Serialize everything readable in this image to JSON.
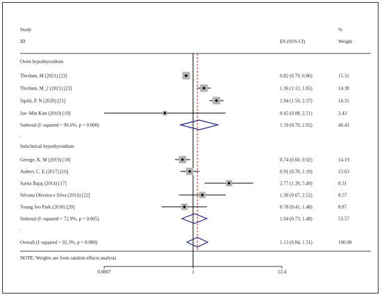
{
  "chart_data": {
    "type": "forest",
    "x_scale": "log",
    "xlim": [
      0.0807,
      12.4
    ],
    "xticks": [
      "0.0807",
      "1",
      "12.4"
    ],
    "null_line": 1,
    "overall_effect_line": 1.13,
    "header": {
      "study_l1": "Study",
      "study_l2": "ID",
      "es": "ES (95% CI)",
      "weight_l1": "%",
      "weight_l2": "Weight"
    },
    "groups": [
      {
        "name": "Overt hypothyroidism",
        "studies": [
          {
            "label": "Thvilum, M (2021) [23]",
            "es": 0.82,
            "lo": 0.79,
            "hi": 0.86,
            "text": "0.82 (0.79, 0.86)",
            "weight": "15.31"
          },
          {
            "label": "Thvilum, M_2 (2021) [23]",
            "es": 1.36,
            "lo": 1.12,
            "hi": 1.65,
            "text": "1.36 (1.12, 1.65)",
            "weight": "14.38"
          },
          {
            "label": "Sipilä, P. N (2020) [21]",
            "es": 1.94,
            "lo": 1.59,
            "hi": 2.37,
            "text": "1.94 (1.59, 2.37)",
            "weight": "14.31"
          },
          {
            "label": "Jae−Min Kim (2010) [19]",
            "es": 0.45,
            "lo": 0.08,
            "hi": 2.51,
            "text": "0.45 (0.08, 2.51)",
            "weight": "2.43"
          }
        ],
        "subtotal": {
          "label": "Subtotal  (I−squared = 96.6%, p = 0.000)",
          "es": 1.19,
          "lo": 0.7,
          "hi": 2.02,
          "text": "1.19 (0.70, 2.02)",
          "weight": "46.43"
        }
      },
      {
        "name": "Subclinical hypothyroidism",
        "studies": [
          {
            "label": "George, K. M (2019) [18]",
            "es": 0.74,
            "lo": 0.6,
            "hi": 0.92,
            "text": "0.74 (0.60, 0.92)",
            "weight": "14.19"
          },
          {
            "label": "Aubert, C. E (2017) [16]",
            "es": 0.91,
            "lo": 0.7,
            "hi": 1.19,
            "text": "0.91 (0.70, 1.19)",
            "weight": "13.63"
          },
          {
            "label": "Sarita Bajaj (2014) [17]",
            "es": 2.77,
            "lo": 1.39,
            "hi": 5.49,
            "text": "2.77 (1.39, 5.49)",
            "weight": "8.31"
          },
          {
            "label": "Silvana Oliveira e Silva (2014) [22]",
            "es": 1.3,
            "lo": 0.67,
            "hi": 2.52,
            "text": "1.30 (0.67, 2.52)",
            "weight": "8.57"
          },
          {
            "label": "Young Joo Park (2010) [20]",
            "es": 0.78,
            "lo": 0.41,
            "hi": 1.48,
            "text": "0.78 (0.41, 1.48)",
            "weight": "8.87"
          }
        ],
        "subtotal": {
          "label": "Subtotal  (I−squared = 72.9%, p = 0.005)",
          "es": 1.04,
          "lo": 0.73,
          "hi": 1.48,
          "text": "1.04 (0.73, 1.48)",
          "weight": "53.57"
        }
      }
    ],
    "separator": ".",
    "overall": {
      "label": "Overall  (I−squared = 92.3%, p = 0.000)",
      "es": 1.13,
      "lo": 0.84,
      "hi": 1.51,
      "text": "1.13 (0.84, 1.51)",
      "weight": "100.00"
    },
    "note": "NOTE: Weights are from random effects analysis",
    "colors": {
      "diamond": "#1f1f7a",
      "dashed": "#c0392b",
      "box": "#b3b3b3",
      "line": "#000000"
    }
  }
}
